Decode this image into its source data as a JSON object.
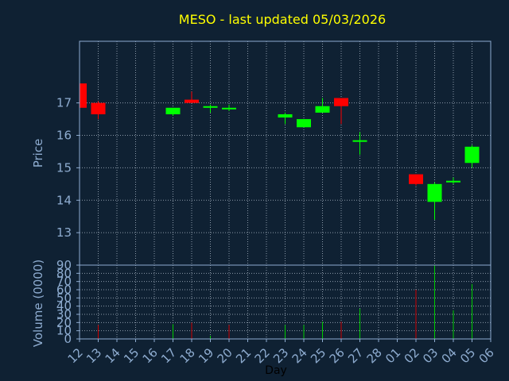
{
  "colors": {
    "background": "#0f2133",
    "title": "#ffff00",
    "axis_text": "#8eacd0",
    "frame": "#8eacd0",
    "grid": "#b5c2cf",
    "up": "#00ff00",
    "down": "#ff0000",
    "volume_bar_up": "#00cc00",
    "volume_bar_down": "#cc0000"
  },
  "chart_data": [
    {
      "type": "candlestick",
      "title": "MESO - last updated 05/03/2026",
      "ylabel": "Price",
      "ylim": [
        12,
        18.9
      ],
      "yticks": [
        "13",
        "14",
        "15",
        "16",
        "17"
      ],
      "grid": true,
      "x_categories": [
        "12",
        "13",
        "14",
        "15",
        "16",
        "17",
        "18",
        "19",
        "20",
        "21",
        "22",
        "23",
        "24",
        "25",
        "26",
        "27",
        "28",
        "01",
        "02",
        "03",
        "04",
        "05",
        "06"
      ],
      "candles": [
        {
          "x": 0,
          "open": 17.6,
          "high": 17.6,
          "low": 16.85,
          "close": 16.85
        },
        {
          "x": 1,
          "open": 17.0,
          "high": 17.05,
          "low": 16.5,
          "close": 16.65
        },
        {
          "x": 5,
          "open": 16.65,
          "high": 16.85,
          "low": 16.6,
          "close": 16.85
        },
        {
          "x": 6,
          "open": 17.1,
          "high": 17.35,
          "low": 17.0,
          "close": 17.0
        },
        {
          "x": 7,
          "open": 16.85,
          "high": 16.95,
          "low": 16.7,
          "close": 16.9
        },
        {
          "x": 8,
          "open": 16.85,
          "high": 16.95,
          "low": 16.75,
          "close": 16.85
        },
        {
          "x": 11,
          "open": 16.55,
          "high": 16.7,
          "low": 16.35,
          "close": 16.65
        },
        {
          "x": 12,
          "open": 16.25,
          "high": 16.5,
          "low": 16.25,
          "close": 16.5
        },
        {
          "x": 13,
          "open": 16.7,
          "high": 17.15,
          "low": 16.7,
          "close": 16.9
        },
        {
          "x": 14,
          "open": 17.15,
          "high": 17.15,
          "low": 16.35,
          "close": 16.9
        },
        {
          "x": 15,
          "open": 15.8,
          "high": 16.1,
          "low": 15.4,
          "close": 15.85
        },
        {
          "x": 18,
          "open": 14.8,
          "high": 14.8,
          "low": 14.45,
          "close": 14.5
        },
        {
          "x": 19,
          "open": 13.95,
          "high": 14.55,
          "low": 13.4,
          "close": 14.5
        },
        {
          "x": 20,
          "open": 14.55,
          "high": 14.7,
          "low": 14.5,
          "close": 14.6
        },
        {
          "x": 21,
          "open": 15.15,
          "high": 15.7,
          "low": 15.0,
          "close": 15.65
        }
      ]
    },
    {
      "type": "bar",
      "ylabel": "Volume (0000)",
      "xlabel": "Day",
      "ylim": [
        0,
        90
      ],
      "yticks": [
        "0",
        "10",
        "20",
        "30",
        "40",
        "50",
        "60",
        "70",
        "80",
        "90"
      ],
      "grid": true,
      "x_categories": [
        "12",
        "13",
        "14",
        "15",
        "16",
        "17",
        "18",
        "19",
        "20",
        "21",
        "22",
        "23",
        "24",
        "25",
        "26",
        "27",
        "28",
        "01",
        "02",
        "03",
        "04",
        "05",
        "06"
      ],
      "bars": [
        {
          "x": 0,
          "value": 0,
          "direction": "down"
        },
        {
          "x": 1,
          "value": 17,
          "direction": "down"
        },
        {
          "x": 5,
          "value": 18,
          "direction": "up"
        },
        {
          "x": 6,
          "value": 20,
          "direction": "down"
        },
        {
          "x": 7,
          "value": 4,
          "direction": "up"
        },
        {
          "x": 8,
          "value": 17,
          "direction": "down"
        },
        {
          "x": 11,
          "value": 17,
          "direction": "up"
        },
        {
          "x": 12,
          "value": 17,
          "direction": "up"
        },
        {
          "x": 13,
          "value": 21,
          "direction": "up"
        },
        {
          "x": 14,
          "value": 21,
          "direction": "down"
        },
        {
          "x": 15,
          "value": 37,
          "direction": "up"
        },
        {
          "x": 18,
          "value": 60,
          "direction": "down"
        },
        {
          "x": 19,
          "value": 90,
          "direction": "up"
        },
        {
          "x": 20,
          "value": 35,
          "direction": "up"
        },
        {
          "x": 21,
          "value": 67,
          "direction": "up"
        }
      ]
    }
  ]
}
